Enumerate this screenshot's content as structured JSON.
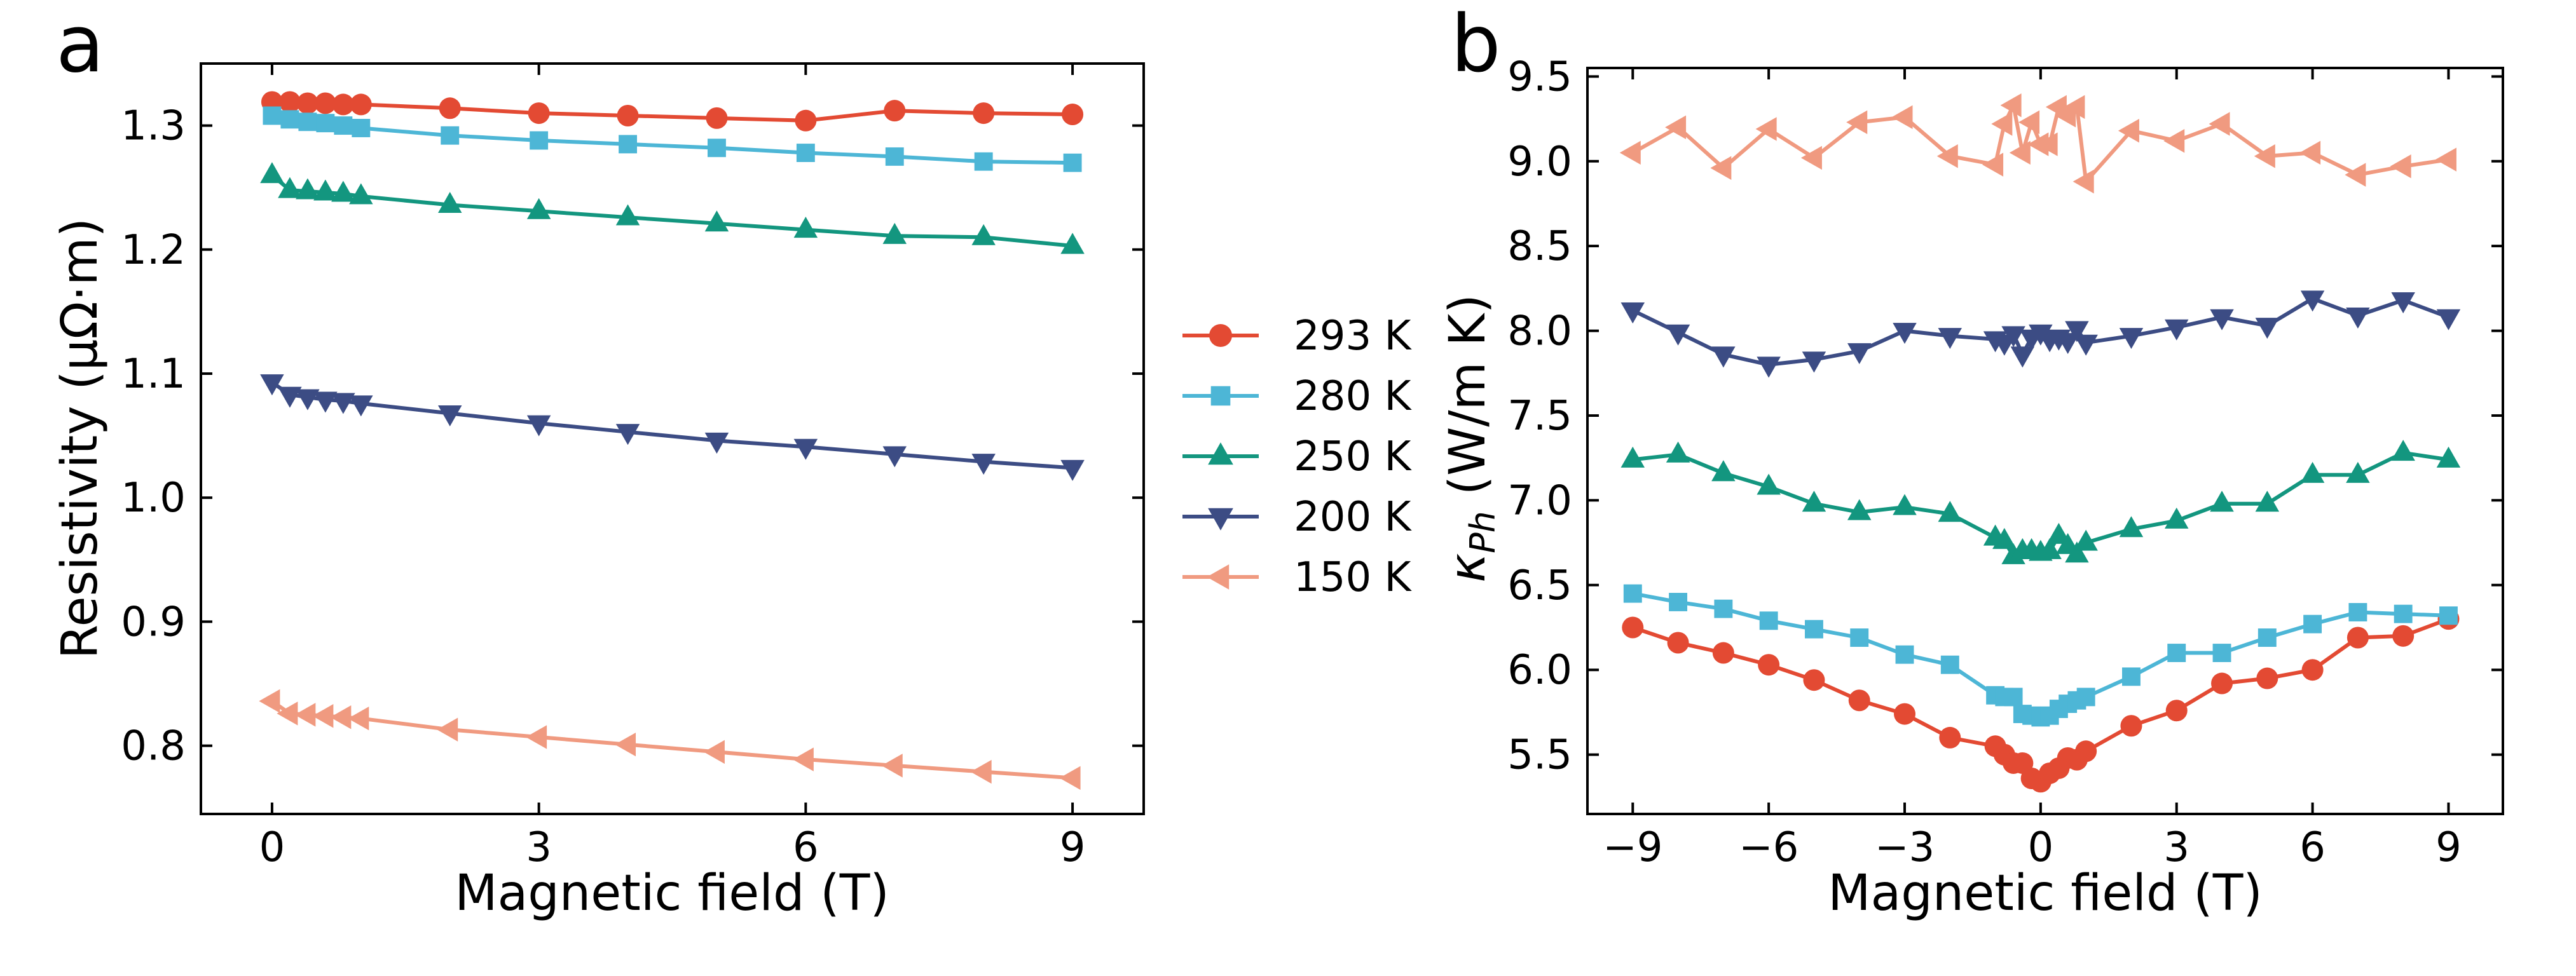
{
  "panels": [
    {
      "letter": "a",
      "xlabel": "Magnetic field (T)",
      "ylabel": "Resistivity (μΩ·m)",
      "xlim": [
        -0.8,
        9.8
      ],
      "ylim": [
        0.745,
        1.35
      ],
      "xticks": [
        0,
        3,
        6,
        9
      ],
      "xtick_labels": [
        "0",
        "3",
        "6",
        "9"
      ],
      "yticks": [
        0.8,
        0.9,
        1.0,
        1.1,
        1.2,
        1.3
      ],
      "ytick_labels": [
        "0.8",
        "0.9",
        "1.0",
        "1.1",
        "1.2",
        "1.3"
      ]
    },
    {
      "letter": "b",
      "xlabel": "Magnetic field (T)",
      "ylabel_main": "κ",
      "ylabel_sub": "Ph",
      "ylabel_rest": " (W/m K)",
      "xlim": [
        -10,
        10.2
      ],
      "ylim": [
        5.15,
        9.55
      ],
      "xticks": [
        -9,
        -6,
        -3,
        0,
        3,
        6,
        9
      ],
      "xtick_labels": [
        "−9",
        "−6",
        "−3",
        "0",
        "3",
        "6",
        "9"
      ],
      "yticks": [
        5.5,
        6.0,
        6.5,
        7.0,
        7.5,
        8.0,
        8.5,
        9.0,
        9.5
      ],
      "ytick_labels": [
        "5.5",
        "6.0",
        "6.5",
        "7.0",
        "7.5",
        "8.0",
        "8.5",
        "9.0",
        "9.5"
      ]
    }
  ],
  "legend": [
    {
      "label": "293 K",
      "color": "#e34a33",
      "marker": "circle"
    },
    {
      "label": "280 K",
      "color": "#4db6d6",
      "marker": "square"
    },
    {
      "label": "250 K",
      "color": "#13967f",
      "marker": "triangle-up"
    },
    {
      "label": "200 K",
      "color": "#3c4c84",
      "marker": "triangle-down"
    },
    {
      "label": "150 K",
      "color": "#f09a80",
      "marker": "triangle-left"
    }
  ],
  "chart_data": [
    {
      "type": "line",
      "title": "",
      "xlabel": "Magnetic field (T)",
      "ylabel": "Resistivity (μΩ·m)",
      "xlim": [
        -0.8,
        9.8
      ],
      "ylim": [
        0.745,
        1.35
      ],
      "series": [
        {
          "name": "293 K",
          "x": [
            0,
            0.2,
            0.4,
            0.6,
            0.8,
            1,
            2,
            3,
            4,
            5,
            6,
            7,
            8,
            9
          ],
          "y": [
            1.319,
            1.319,
            1.318,
            1.318,
            1.317,
            1.317,
            1.314,
            1.31,
            1.308,
            1.306,
            1.304,
            1.312,
            1.31,
            1.309
          ]
        },
        {
          "name": "280 K",
          "x": [
            0,
            0.2,
            0.4,
            0.6,
            0.8,
            1,
            2,
            3,
            4,
            5,
            6,
            7,
            8,
            9
          ],
          "y": [
            1.308,
            1.305,
            1.303,
            1.302,
            1.3,
            1.298,
            1.292,
            1.288,
            1.285,
            1.282,
            1.278,
            1.275,
            1.271,
            1.27
          ]
        },
        {
          "name": "250 K",
          "x": [
            0,
            0.2,
            0.4,
            0.6,
            0.8,
            1,
            2,
            3,
            4,
            5,
            6,
            7,
            8,
            9
          ],
          "y": [
            1.26,
            1.248,
            1.247,
            1.246,
            1.245,
            1.243,
            1.236,
            1.231,
            1.226,
            1.221,
            1.216,
            1.211,
            1.21,
            1.203
          ]
        },
        {
          "name": "200 K",
          "x": [
            0,
            0.2,
            0.4,
            0.6,
            0.8,
            1,
            2,
            3,
            4,
            5,
            6,
            7,
            8,
            9
          ],
          "y": [
            1.093,
            1.083,
            1.081,
            1.079,
            1.078,
            1.076,
            1.068,
            1.06,
            1.053,
            1.046,
            1.041,
            1.035,
            1.029,
            1.024
          ]
        },
        {
          "name": "150 K",
          "x": [
            0,
            0.2,
            0.4,
            0.6,
            0.8,
            1,
            2,
            3,
            4,
            5,
            6,
            7,
            8,
            9
          ],
          "y": [
            0.836,
            0.826,
            0.825,
            0.824,
            0.823,
            0.822,
            0.813,
            0.807,
            0.801,
            0.795,
            0.789,
            0.784,
            0.779,
            0.774
          ]
        }
      ]
    },
    {
      "type": "line",
      "title": "",
      "xlabel": "Magnetic field (T)",
      "ylabel": "κPh (W/m K)",
      "xlim": [
        -10,
        10.2
      ],
      "ylim": [
        5.15,
        9.55
      ],
      "series": [
        {
          "name": "293 K",
          "x": [
            -9,
            -8,
            -7,
            -6,
            -5,
            -4,
            -3,
            -2,
            -1,
            -0.8,
            -0.6,
            -0.4,
            -0.2,
            0,
            0.2,
            0.4,
            0.6,
            0.8,
            1,
            2,
            3,
            4,
            5,
            6,
            7,
            8,
            9
          ],
          "y": [
            6.25,
            6.16,
            6.1,
            6.03,
            5.94,
            5.82,
            5.74,
            5.6,
            5.55,
            5.5,
            5.45,
            5.45,
            5.36,
            5.34,
            5.39,
            5.42,
            5.48,
            5.47,
            5.52,
            5.67,
            5.76,
            5.92,
            5.95,
            6.0,
            6.19,
            6.2,
            6.3
          ]
        },
        {
          "name": "280 K",
          "x": [
            -9,
            -8,
            -7,
            -6,
            -5,
            -4,
            -3,
            -2,
            -1,
            -0.8,
            -0.6,
            -0.4,
            -0.2,
            0,
            0.2,
            0.4,
            0.6,
            0.8,
            1,
            2,
            3,
            4,
            5,
            6,
            7,
            8,
            9
          ],
          "y": [
            6.45,
            6.4,
            6.36,
            6.29,
            6.24,
            6.19,
            6.09,
            6.03,
            5.85,
            5.84,
            5.84,
            5.74,
            5.73,
            5.72,
            5.73,
            5.77,
            5.8,
            5.82,
            5.84,
            5.96,
            6.1,
            6.1,
            6.19,
            6.27,
            6.34,
            6.33,
            6.32
          ]
        },
        {
          "name": "250 K",
          "x": [
            -9,
            -8,
            -7,
            -6,
            -5,
            -4,
            -3,
            -2,
            -1,
            -0.8,
            -0.6,
            -0.4,
            -0.2,
            0,
            0.2,
            0.4,
            0.6,
            0.8,
            1,
            2,
            3,
            4,
            5,
            6,
            7,
            8,
            9
          ],
          "y": [
            7.24,
            7.27,
            7.16,
            7.08,
            6.98,
            6.93,
            6.96,
            6.92,
            6.78,
            6.76,
            6.67,
            6.7,
            6.7,
            6.69,
            6.7,
            6.79,
            6.73,
            6.68,
            6.75,
            6.83,
            6.88,
            6.98,
            6.98,
            7.15,
            7.15,
            7.28,
            7.24
          ]
        },
        {
          "name": "200 K",
          "x": [
            -9,
            -8,
            -7,
            -6,
            -5,
            -4,
            -3,
            -2,
            -1,
            -0.8,
            -0.6,
            -0.4,
            -0.2,
            0,
            0.2,
            0.4,
            0.6,
            0.8,
            1,
            2,
            3,
            4,
            5,
            6,
            7,
            8,
            9
          ],
          "y": [
            8.12,
            7.99,
            7.86,
            7.8,
            7.83,
            7.88,
            8.0,
            7.97,
            7.95,
            7.93,
            7.98,
            7.86,
            7.96,
            7.99,
            7.95,
            7.96,
            7.94,
            8.01,
            7.93,
            7.97,
            8.02,
            8.08,
            8.03,
            8.19,
            8.09,
            8.18,
            8.08
          ]
        },
        {
          "name": "150 K",
          "x": [
            -9,
            -8,
            -7,
            -6,
            -5,
            -4,
            -3,
            -2,
            -1,
            -0.8,
            -0.6,
            -0.4,
            -0.2,
            0,
            0.2,
            0.4,
            0.6,
            0.8,
            1,
            2,
            3,
            4,
            5,
            6,
            7,
            8,
            9
          ],
          "y": [
            9.05,
            9.2,
            8.96,
            9.19,
            9.02,
            9.23,
            9.26,
            9.03,
            8.98,
            9.22,
            9.33,
            9.05,
            9.23,
            9.1,
            9.1,
            9.32,
            9.27,
            9.32,
            8.88,
            9.18,
            9.12,
            9.22,
            9.03,
            9.05,
            8.92,
            8.97,
            9.01
          ]
        }
      ]
    }
  ]
}
